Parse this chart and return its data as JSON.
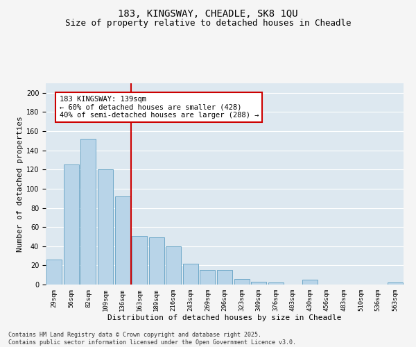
{
  "title_line1": "183, KINGSWAY, CHEADLE, SK8 1QU",
  "title_line2": "Size of property relative to detached houses in Cheadle",
  "xlabel": "Distribution of detached houses by size in Cheadle",
  "ylabel": "Number of detached properties",
  "categories": [
    "29sqm",
    "56sqm",
    "82sqm",
    "109sqm",
    "136sqm",
    "163sqm",
    "189sqm",
    "216sqm",
    "243sqm",
    "269sqm",
    "296sqm",
    "323sqm",
    "349sqm",
    "376sqm",
    "403sqm",
    "430sqm",
    "456sqm",
    "483sqm",
    "510sqm",
    "536sqm",
    "563sqm"
  ],
  "values": [
    26,
    125,
    152,
    120,
    92,
    51,
    49,
    40,
    22,
    15,
    15,
    6,
    3,
    2,
    0,
    5,
    0,
    0,
    0,
    0,
    2
  ],
  "bar_color": "#b8d4e8",
  "bar_edge_color": "#6fa8c8",
  "vline_color": "#cc0000",
  "vline_x": 4.5,
  "annotation_text": "183 KINGSWAY: 139sqm\n← 60% of detached houses are smaller (428)\n40% of semi-detached houses are larger (288) →",
  "annotation_box_color": "#ffffff",
  "annotation_border_color": "#cc0000",
  "ylim": [
    0,
    210
  ],
  "yticks": [
    0,
    20,
    40,
    60,
    80,
    100,
    120,
    140,
    160,
    180,
    200
  ],
  "plot_bg_color": "#dde8f0",
  "fig_bg_color": "#f5f5f5",
  "grid_color": "#ffffff",
  "footer_line1": "Contains HM Land Registry data © Crown copyright and database right 2025.",
  "footer_line2": "Contains public sector information licensed under the Open Government Licence v3.0.",
  "title_fontsize": 10,
  "subtitle_fontsize": 9,
  "axis_label_fontsize": 8,
  "tick_fontsize": 6.5,
  "annotation_fontsize": 7.5,
  "footer_fontsize": 6
}
